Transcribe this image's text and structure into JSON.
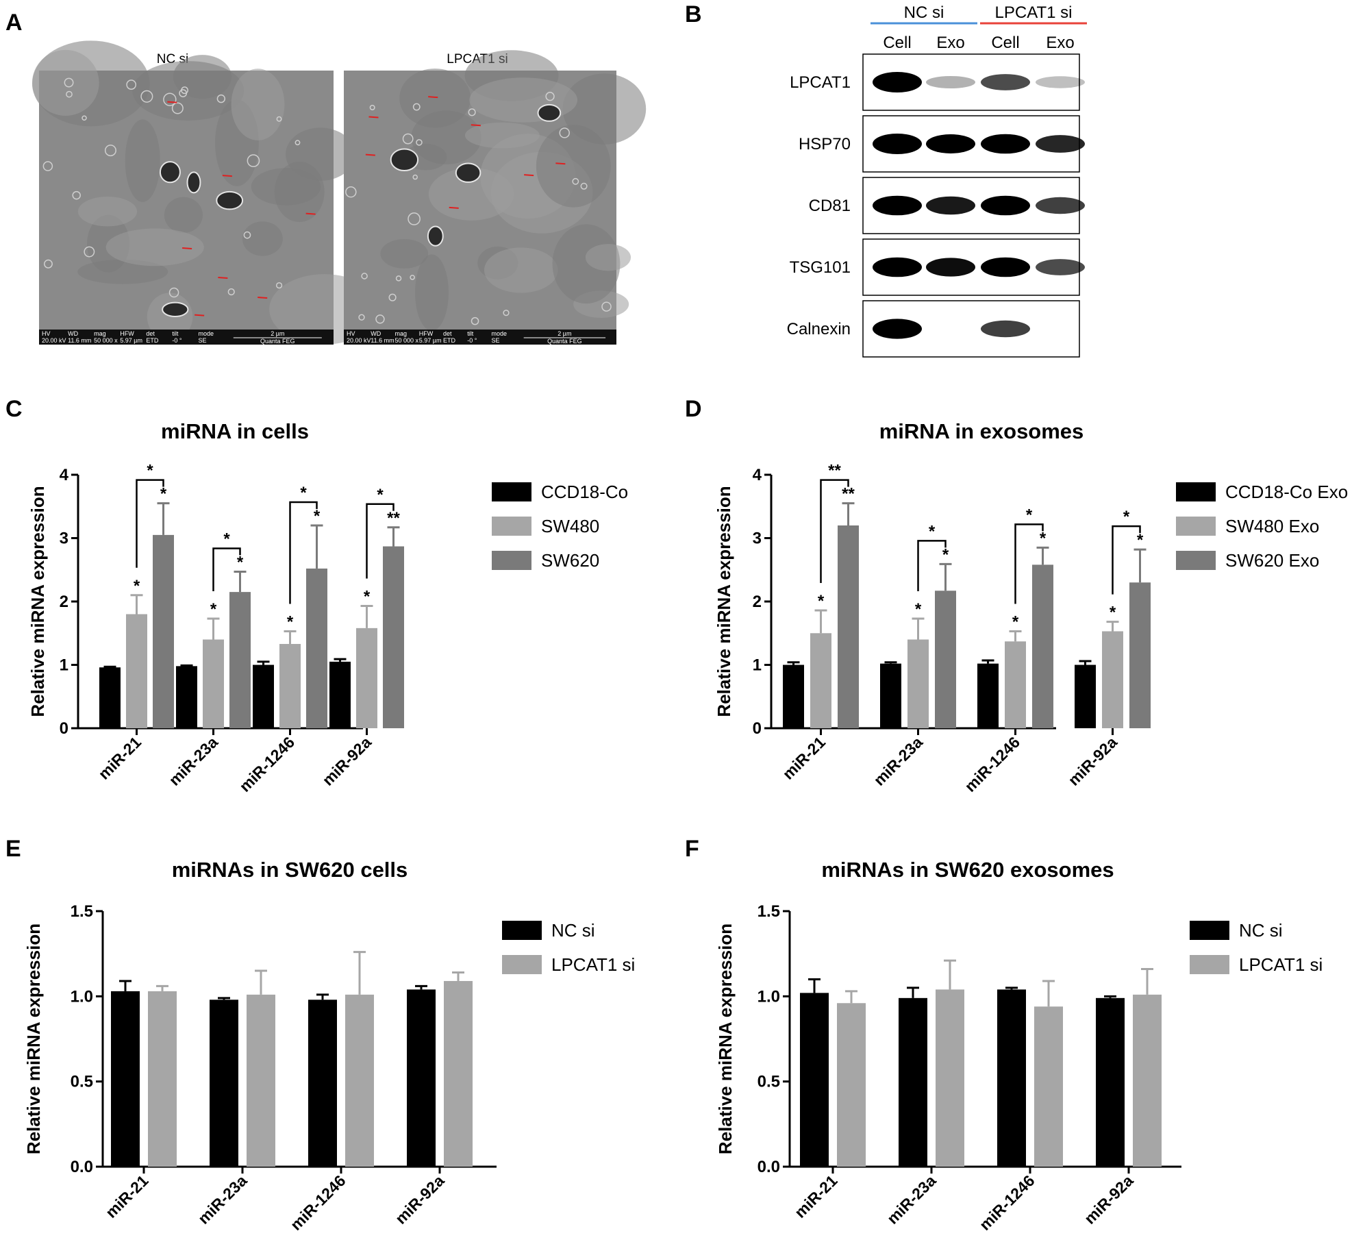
{
  "panels": {
    "A": {
      "label": "A",
      "images": [
        {
          "title": "NC si",
          "info": [
            "HV",
            "WD",
            "mag",
            "HFW",
            "det",
            "tilt",
            "mode",
            "20.00 kV",
            "11.6 mm",
            "50 000 x",
            "5.97 µm",
            "ETD",
            "-0 °",
            "SE"
          ],
          "scale": "2 µm",
          "instrument": "Quanta FEG"
        },
        {
          "title": "LPCAT1 si",
          "info": [
            "HV",
            "WD",
            "mag",
            "HFW",
            "det",
            "tilt",
            "mode",
            "20.00 kV",
            "11.6 mm",
            "50 000 x",
            "5.97 µm",
            "ETD",
            "-0 °",
            "SE"
          ],
          "scale": "2 µm",
          "instrument": "Quanta FEG"
        }
      ]
    },
    "B": {
      "label": "B",
      "groups": [
        {
          "name": "NC si",
          "color": "#4a90d9"
        },
        {
          "name": "LPCAT1 si",
          "color": "#e8423a"
        }
      ],
      "lanes": [
        "Cell",
        "Exo",
        "Cell",
        "Exo"
      ],
      "proteins": [
        {
          "name": "LPCAT1",
          "intensity": [
            1.0,
            0.15,
            0.55,
            0.1
          ]
        },
        {
          "name": "HSP70",
          "intensity": [
            1.0,
            0.85,
            0.9,
            0.7
          ]
        },
        {
          "name": "CD81",
          "intensity": [
            0.9,
            0.75,
            0.9,
            0.6
          ]
        },
        {
          "name": "TSG101",
          "intensity": [
            0.9,
            0.8,
            0.9,
            0.55
          ]
        },
        {
          "name": "Calnexin",
          "intensity": [
            0.95,
            0.0,
            0.6,
            0.0
          ]
        }
      ]
    }
  },
  "chart_data": [
    {
      "panel": "C",
      "type": "bar",
      "title": "miRNA in cells",
      "ylabel": "Relative miRNA expression",
      "xlabel": "",
      "ylim": [
        0,
        4
      ],
      "yticks": [
        "0",
        "1",
        "2",
        "3",
        "4"
      ],
      "categories": [
        "miR-21",
        "miR-23a",
        "miR-1246",
        "miR-92a"
      ],
      "series": [
        {
          "name": "CCD18-Co",
          "color": "#000000",
          "values": [
            0.96,
            0.98,
            1.0,
            1.05
          ],
          "errors": [
            0.01,
            0.01,
            0.05,
            0.04
          ],
          "stars": [
            "",
            "",
            "",
            ""
          ]
        },
        {
          "name": "SW480",
          "color": "#a6a6a6",
          "values": [
            1.8,
            1.4,
            1.33,
            1.58
          ],
          "errors": [
            0.3,
            0.33,
            0.2,
            0.35
          ],
          "stars": [
            "*",
            "*",
            "*",
            "*"
          ]
        },
        {
          "name": "SW620",
          "color": "#7a7a7a",
          "values": [
            3.05,
            2.15,
            2.52,
            2.87
          ],
          "errors": [
            0.5,
            0.32,
            0.68,
            0.3
          ],
          "stars": [
            "*",
            "*",
            "*",
            "**"
          ]
        }
      ],
      "brackets": [
        "*",
        "*",
        "*",
        "*"
      ],
      "legend": "right"
    },
    {
      "panel": "D",
      "type": "bar",
      "title": "miRNA in exosomes",
      "ylabel": "Relative miRNA expression",
      "xlabel": "",
      "ylim": [
        0,
        4
      ],
      "yticks": [
        "0",
        "1",
        "2",
        "3",
        "4"
      ],
      "categories": [
        "miR-21",
        "miR-23a",
        "miR-1246",
        "miR-92a"
      ],
      "series": [
        {
          "name": "CCD18-Co Exo",
          "color": "#000000",
          "values": [
            1.0,
            1.02,
            1.02,
            1.0
          ],
          "errors": [
            0.04,
            0.02,
            0.05,
            0.06
          ],
          "stars": [
            "",
            "",
            "",
            ""
          ]
        },
        {
          "name": "SW480 Exo",
          "color": "#a6a6a6",
          "values": [
            1.5,
            1.4,
            1.37,
            1.53
          ],
          "errors": [
            0.36,
            0.33,
            0.16,
            0.15
          ],
          "stars": [
            "*",
            "*",
            "*",
            "*"
          ]
        },
        {
          "name": "SW620 Exo",
          "color": "#7a7a7a",
          "values": [
            3.2,
            2.17,
            2.58,
            2.3
          ],
          "errors": [
            0.35,
            0.42,
            0.27,
            0.52
          ],
          "stars": [
            "**",
            "*",
            "*",
            "*"
          ]
        }
      ],
      "brackets": [
        "**",
        "*",
        "*",
        "*"
      ],
      "legend": "right"
    },
    {
      "panel": "E",
      "type": "bar",
      "title": "miRNAs in SW620 cells",
      "ylabel": "Relative miRNA expression",
      "xlabel": "",
      "ylim": [
        0,
        1.5
      ],
      "yticks": [
        "0.0",
        "0.5",
        "1.0",
        "1.5"
      ],
      "categories": [
        "miR-21",
        "miR-23a",
        "miR-1246",
        "miR-92a"
      ],
      "series": [
        {
          "name": "NC si",
          "color": "#000000",
          "values": [
            1.03,
            0.98,
            0.98,
            1.04
          ],
          "errors": [
            0.06,
            0.01,
            0.03,
            0.02
          ],
          "stars": [
            "",
            "",
            "",
            ""
          ]
        },
        {
          "name": "LPCAT1 si",
          "color": "#a6a6a6",
          "values": [
            1.03,
            1.01,
            1.01,
            1.09
          ],
          "errors": [
            0.03,
            0.14,
            0.25,
            0.05
          ],
          "stars": [
            "",
            "",
            "",
            ""
          ]
        }
      ],
      "brackets": [],
      "legend": "right"
    },
    {
      "panel": "F",
      "type": "bar",
      "title": "miRNAs in SW620 exosomes",
      "ylabel": "Relative miRNA expression",
      "xlabel": "",
      "ylim": [
        0,
        1.5
      ],
      "yticks": [
        "0.0",
        "0.5",
        "1.0",
        "1.5"
      ],
      "categories": [
        "miR-21",
        "miR-23a",
        "miR-1246",
        "miR-92a"
      ],
      "series": [
        {
          "name": "NC si",
          "color": "#000000",
          "values": [
            1.02,
            0.99,
            1.04,
            0.99
          ],
          "errors": [
            0.08,
            0.06,
            0.01,
            0.01
          ],
          "stars": [
            "",
            "",
            "",
            ""
          ]
        },
        {
          "name": "LPCAT1 si",
          "color": "#a6a6a6",
          "values": [
            0.96,
            1.04,
            0.94,
            1.01
          ],
          "errors": [
            0.07,
            0.17,
            0.15,
            0.15
          ],
          "stars": [
            "",
            "",
            "",
            ""
          ]
        }
      ],
      "brackets": [],
      "legend": "right"
    }
  ]
}
